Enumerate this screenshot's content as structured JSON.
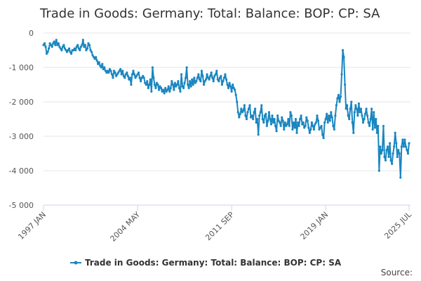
{
  "chart_data": {
    "type": "line",
    "title": "Trade in Goods: Germany: Total: Balance: BOP: CP: SA",
    "source": "Source:",
    "categories": [
      "1997 JAN",
      null,
      null,
      null,
      null,
      null,
      null,
      null,
      null,
      null,
      null,
      null,
      null,
      null,
      null,
      null,
      null,
      null,
      null,
      null,
      null,
      null,
      null,
      null,
      null,
      null,
      null,
      null,
      null,
      null,
      null,
      null,
      null,
      null,
      null,
      null,
      null,
      null,
      null,
      null,
      null,
      null,
      null,
      null,
      null,
      null,
      null,
      null,
      null,
      null,
      null,
      null,
      null,
      null,
      null,
      null,
      null,
      null,
      null,
      null,
      null,
      null,
      null,
      null,
      null,
      null,
      null,
      null,
      null,
      null,
      null,
      null,
      null,
      null,
      null,
      null,
      null,
      null,
      null,
      null,
      null,
      null,
      null,
      null,
      null,
      null,
      null,
      null,
      "2004 MAY",
      null,
      null,
      null,
      null,
      null,
      null,
      null,
      null,
      null,
      null,
      null,
      null,
      null,
      null,
      null,
      null,
      null,
      null,
      null,
      null,
      null,
      null,
      null,
      null,
      null,
      null,
      null,
      null,
      null,
      null,
      null,
      null,
      null,
      null,
      null,
      null,
      null,
      null,
      null,
      null,
      null,
      null,
      null,
      null,
      null,
      null,
      null,
      null,
      null,
      null,
      null,
      null,
      null,
      null,
      null,
      null,
      null,
      null,
      null,
      null,
      null,
      null,
      null,
      null,
      null,
      null,
      null,
      null,
      null,
      null,
      null,
      null,
      null,
      null,
      null,
      null,
      null,
      null,
      null,
      null,
      null,
      null,
      null,
      null,
      null,
      null,
      null,
      "2011 SEP",
      null,
      null,
      null,
      null,
      null,
      null,
      null,
      null,
      null,
      null,
      null,
      null,
      null,
      null,
      null,
      null,
      null,
      null,
      null,
      null,
      null,
      null,
      null,
      null,
      null,
      null,
      null,
      null,
      null,
      null,
      null,
      null,
      null,
      null,
      null,
      null,
      null,
      null,
      null,
      null,
      null,
      null,
      null,
      null,
      null,
      null,
      null,
      null,
      null,
      null,
      null,
      null,
      null,
      null,
      null,
      null,
      null,
      null,
      null,
      null,
      null,
      null,
      null,
      null,
      null,
      null,
      null,
      null,
      null,
      null,
      null,
      null,
      null,
      null,
      null,
      null,
      null,
      null,
      null,
      null,
      null,
      null,
      null,
      null,
      null,
      null,
      null,
      "2019 JAN",
      null,
      null,
      null,
      null,
      null,
      null,
      null,
      null,
      null,
      null,
      null,
      null,
      null,
      null,
      null,
      null,
      null,
      null,
      null,
      null,
      null,
      null,
      null,
      null,
      null,
      null,
      null,
      null,
      null,
      null,
      null,
      null,
      null,
      null,
      null,
      null,
      null,
      null,
      null,
      null,
      null,
      null,
      null,
      null,
      null,
      null,
      null,
      null,
      null,
      null,
      null,
      null,
      null,
      null,
      null,
      null,
      null,
      null,
      null,
      null,
      null,
      null,
      null,
      null,
      null,
      null,
      null,
      null,
      null,
      null,
      null,
      null,
      null,
      null,
      null,
      null,
      null,
      "2025 JUL"
    ],
    "series": [
      {
        "name": "Trade in Goods: Germany: Total: Balance: BOP: CP: SA",
        "color": "#1a86c0",
        "values": [
          -350,
          -300,
          -400,
          -600,
          -550,
          -450,
          -300,
          -350,
          -400,
          -300,
          -250,
          -350,
          -200,
          -350,
          -300,
          -400,
          -450,
          -500,
          -400,
          -350,
          -450,
          -500,
          -550,
          -500,
          -450,
          -550,
          -600,
          -500,
          -500,
          -450,
          -500,
          -400,
          -350,
          -450,
          -500,
          -400,
          -350,
          -200,
          -400,
          -350,
          -500,
          -450,
          -300,
          -350,
          -500,
          -550,
          -650,
          -700,
          -750,
          -700,
          -800,
          -900,
          -850,
          -950,
          -1000,
          -900,
          -1050,
          -1000,
          -1100,
          -1150,
          -1100,
          -1150,
          -1050,
          -1100,
          -1200,
          -1300,
          -1100,
          -1150,
          -1250,
          -1200,
          -1150,
          -1100,
          -1050,
          -1200,
          -1100,
          -1250,
          -1300,
          -1200,
          -1150,
          -1250,
          -1350,
          -1300,
          -1500,
          -1200,
          -1100,
          -1200,
          -1300,
          -1250,
          -1200,
          -1150,
          -1300,
          -1400,
          -1300,
          -1250,
          -1300,
          -1450,
          -1500,
          -1400,
          -1600,
          -1500,
          -1350,
          -1700,
          -1000,
          -1300,
          -1500,
          -1600,
          -1450,
          -1500,
          -1650,
          -1550,
          -1600,
          -1700,
          -1650,
          -1750,
          -1600,
          -1700,
          -1650,
          -1550,
          -1700,
          -1600,
          -1400,
          -1500,
          -1650,
          -1450,
          -1550,
          -1500,
          -1400,
          -1600,
          -1700,
          -1200,
          -1550,
          -1600,
          -1450,
          -1300,
          -1000,
          -1500,
          -1600,
          -1400,
          -1550,
          -1350,
          -1500,
          -1300,
          -1450,
          -1400,
          -1300,
          -1200,
          -1350,
          -1400,
          -1100,
          -1250,
          -1500,
          -1400,
          -1350,
          -1200,
          -1300,
          -1350,
          -1250,
          -1150,
          -1300,
          -1400,
          -1250,
          -1200,
          -1100,
          -1350,
          -1400,
          -1300,
          -1250,
          -1500,
          -1400,
          -1300,
          -1200,
          -1350,
          -1500,
          -1600,
          -1450,
          -1550,
          -1700,
          -1500,
          -1600,
          -1650,
          -1800,
          -2000,
          -2300,
          -2450,
          -2350,
          -2200,
          -2300,
          -2250,
          -2100,
          -2400,
          -2500,
          -2300,
          -2200,
          -2100,
          -2450,
          -2400,
          -2500,
          -2300,
          -2200,
          -2600,
          -2500,
          -2950,
          -2400,
          -2300,
          -2100,
          -2500,
          -2600,
          -2400,
          -2350,
          -2700,
          -2550,
          -2300,
          -2500,
          -2650,
          -2400,
          -2600,
          -2500,
          -2700,
          -2850,
          -2400,
          -2550,
          -2600,
          -2700,
          -2450,
          -2550,
          -2800,
          -2600,
          -2700,
          -2650,
          -2500,
          -2700,
          -2300,
          -2400,
          -2800,
          -2600,
          -2750,
          -2500,
          -2900,
          -2600,
          -2700,
          -2500,
          -2400,
          -2650,
          -2600,
          -2750,
          -2700,
          -2450,
          -2550,
          -2750,
          -2900,
          -2800,
          -2600,
          -2700,
          -2800,
          -2650,
          -2600,
          -2400,
          -2550,
          -2800,
          -2750,
          -2700,
          -2950,
          -3050,
          -2600,
          -2500,
          -2350,
          -2600,
          -2400,
          -2550,
          -2300,
          -2450,
          -2700,
          -2800,
          -2400,
          -2100,
          -1900,
          -1800,
          -2000,
          -1850,
          -1200,
          -500,
          -700,
          -1500,
          -2200,
          -2100,
          -2400,
          -2500,
          -2200,
          -2000,
          -2600,
          -2900,
          -2300,
          -2100,
          -2200,
          -2400,
          -2050,
          -2300,
          -2200,
          -2400,
          -2600,
          -2500,
          -2350,
          -2200,
          -2400,
          -2600,
          -2700,
          -2500,
          -2200,
          -2800,
          -2300,
          -2750,
          -2500,
          -2900,
          -2700,
          -4000,
          -3300,
          -3500,
          -3400,
          -2700,
          -3600,
          -3700,
          -3400,
          -3300,
          -3600,
          -3200,
          -3700,
          -3800,
          -3500,
          -3300,
          -2900,
          -3200,
          -3600,
          -3400,
          -3500,
          -4200,
          -3300,
          -3100,
          -3300,
          -3100,
          -3300,
          -3400,
          -3500,
          -3200
        ]
      }
    ],
    "ylim": [
      -5000,
      0
    ],
    "yticks": [
      {
        "value": -5000,
        "label": "-5 000"
      },
      {
        "value": -4000,
        "label": "-4 000"
      },
      {
        "value": -3000,
        "label": "-3 000"
      },
      {
        "value": -2000,
        "label": "-2 000"
      },
      {
        "value": -1000,
        "label": "-1 000"
      },
      0
    ],
    "grid": true
  }
}
